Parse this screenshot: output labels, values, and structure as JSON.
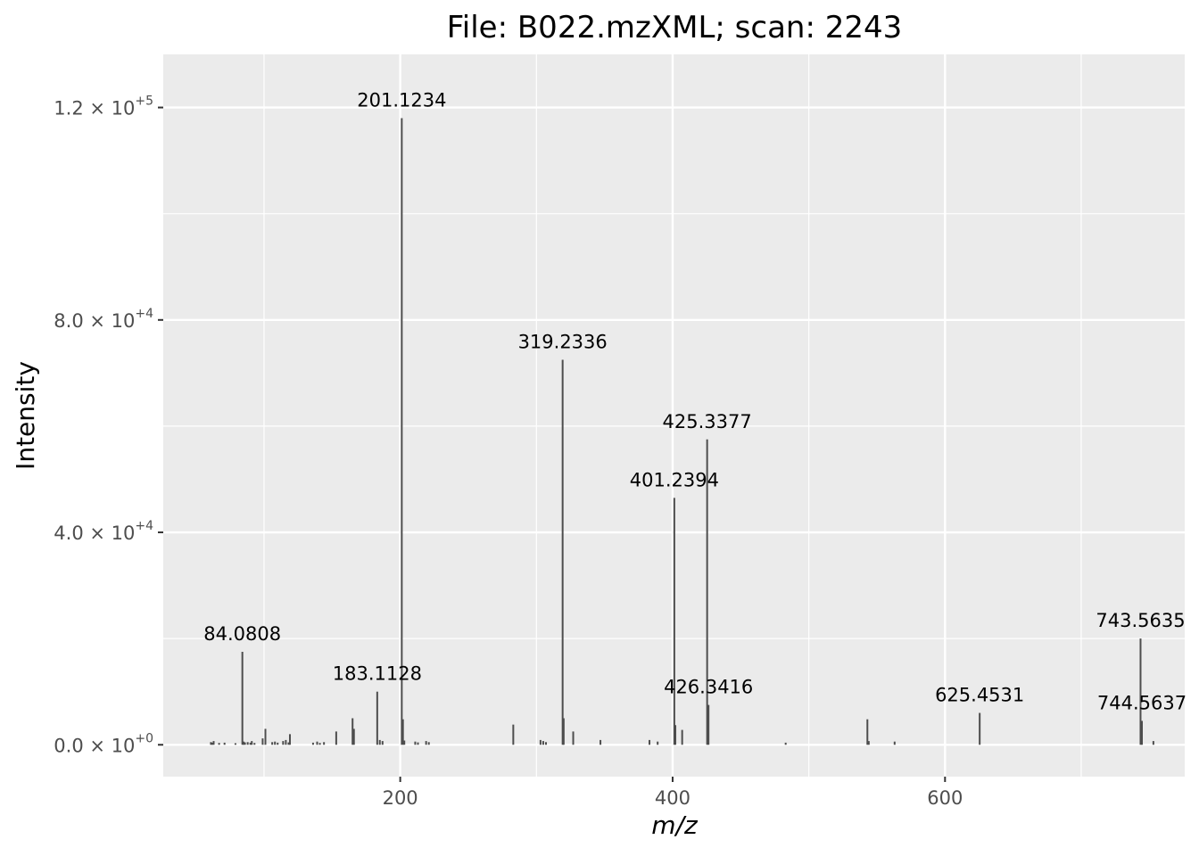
{
  "chart_data": {
    "type": "bar",
    "title": "File: B022.mzXML; scan: 2243",
    "xlabel": "m/z",
    "ylabel": "Intensity",
    "xlim": [
      26,
      776
    ],
    "ylim": [
      -6000,
      130000
    ],
    "x_ticks": [
      200,
      400,
      600
    ],
    "y_ticks": [
      {
        "value": 0,
        "mantissa": "0.0",
        "exponent": "+0"
      },
      {
        "value": 40000,
        "mantissa": "4.0",
        "exponent": "+4"
      },
      {
        "value": 80000,
        "mantissa": "8.0",
        "exponent": "+4"
      },
      {
        "value": 120000,
        "mantissa": "1.2",
        "exponent": "+5"
      }
    ],
    "grid": true,
    "labeled_peaks": [
      {
        "mz": 84.0808,
        "intensity": 17500,
        "label": "84.0808"
      },
      {
        "mz": 183.1128,
        "intensity": 10000,
        "label": "183.1128"
      },
      {
        "mz": 201.1234,
        "intensity": 118000,
        "label": "201.1234"
      },
      {
        "mz": 319.2336,
        "intensity": 72500,
        "label": "319.2336"
      },
      {
        "mz": 401.2394,
        "intensity": 46500,
        "label": "401.2394"
      },
      {
        "mz": 425.3377,
        "intensity": 57500,
        "label": "425.3377"
      },
      {
        "mz": 426.3416,
        "intensity": 7500,
        "label": "426.3416"
      },
      {
        "mz": 625.4531,
        "intensity": 6000,
        "label": "625.4531"
      },
      {
        "mz": 743.5635,
        "intensity": 20000,
        "label": "743.5635"
      },
      {
        "mz": 744.5637,
        "intensity": 4500,
        "label": "744.5637"
      }
    ],
    "peaks": [
      {
        "mz": 61,
        "intensity": 500
      },
      {
        "mz": 62,
        "intensity": 400
      },
      {
        "mz": 63,
        "intensity": 700
      },
      {
        "mz": 67,
        "intensity": 350
      },
      {
        "mz": 71,
        "intensity": 400
      },
      {
        "mz": 79,
        "intensity": 300
      },
      {
        "mz": 84.0808,
        "intensity": 17500
      },
      {
        "mz": 85,
        "intensity": 600
      },
      {
        "mz": 86,
        "intensity": 450
      },
      {
        "mz": 88,
        "intensity": 500
      },
      {
        "mz": 90,
        "intensity": 400
      },
      {
        "mz": 91,
        "intensity": 700
      },
      {
        "mz": 93,
        "intensity": 350
      },
      {
        "mz": 99,
        "intensity": 1200
      },
      {
        "mz": 101,
        "intensity": 3000
      },
      {
        "mz": 106,
        "intensity": 500
      },
      {
        "mz": 108,
        "intensity": 600
      },
      {
        "mz": 110,
        "intensity": 400
      },
      {
        "mz": 114,
        "intensity": 700
      },
      {
        "mz": 116,
        "intensity": 900
      },
      {
        "mz": 118,
        "intensity": 450
      },
      {
        "mz": 119,
        "intensity": 2000
      },
      {
        "mz": 136,
        "intensity": 400
      },
      {
        "mz": 139,
        "intensity": 600
      },
      {
        "mz": 141,
        "intensity": 350
      },
      {
        "mz": 144,
        "intensity": 500
      },
      {
        "mz": 153,
        "intensity": 2500
      },
      {
        "mz": 165,
        "intensity": 5000
      },
      {
        "mz": 166,
        "intensity": 3000
      },
      {
        "mz": 183.1128,
        "intensity": 10000
      },
      {
        "mz": 185,
        "intensity": 900
      },
      {
        "mz": 187,
        "intensity": 700
      },
      {
        "mz": 201.1234,
        "intensity": 118000
      },
      {
        "mz": 202,
        "intensity": 4800
      },
      {
        "mz": 203,
        "intensity": 800
      },
      {
        "mz": 211,
        "intensity": 600
      },
      {
        "mz": 213,
        "intensity": 450
      },
      {
        "mz": 219,
        "intensity": 700
      },
      {
        "mz": 221,
        "intensity": 500
      },
      {
        "mz": 283,
        "intensity": 3800
      },
      {
        "mz": 303,
        "intensity": 900
      },
      {
        "mz": 305,
        "intensity": 700
      },
      {
        "mz": 307,
        "intensity": 500
      },
      {
        "mz": 319.2336,
        "intensity": 72500
      },
      {
        "mz": 320,
        "intensity": 5000
      },
      {
        "mz": 327,
        "intensity": 2500
      },
      {
        "mz": 347,
        "intensity": 900
      },
      {
        "mz": 383,
        "intensity": 900
      },
      {
        "mz": 389,
        "intensity": 600
      },
      {
        "mz": 401.2394,
        "intensity": 46500
      },
      {
        "mz": 402,
        "intensity": 3700
      },
      {
        "mz": 407,
        "intensity": 2800
      },
      {
        "mz": 425.3377,
        "intensity": 57500
      },
      {
        "mz": 426.3416,
        "intensity": 7500
      },
      {
        "mz": 483,
        "intensity": 400
      },
      {
        "mz": 543,
        "intensity": 4800
      },
      {
        "mz": 544,
        "intensity": 700
      },
      {
        "mz": 563,
        "intensity": 600
      },
      {
        "mz": 625.4531,
        "intensity": 6000
      },
      {
        "mz": 743.5635,
        "intensity": 20000
      },
      {
        "mz": 744.5637,
        "intensity": 4500
      },
      {
        "mz": 753,
        "intensity": 700
      }
    ]
  }
}
